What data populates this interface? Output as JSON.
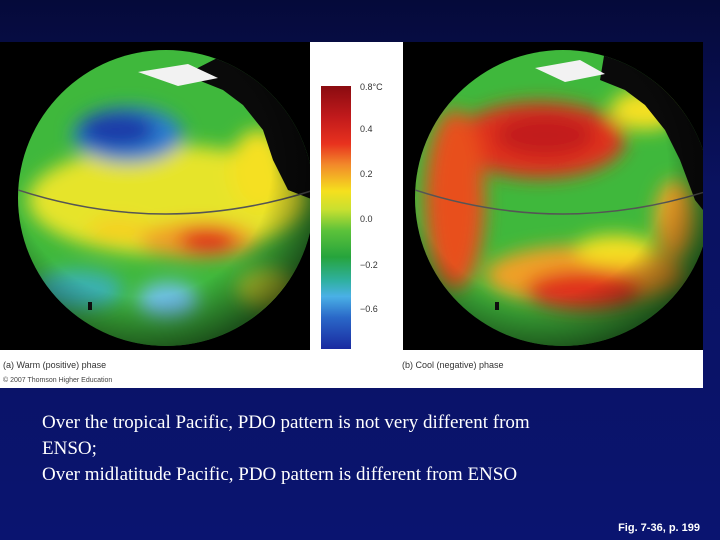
{
  "figure": {
    "colorbar": {
      "ticks": [
        "0.8°C",
        "0.4",
        "0.2",
        "0.0",
        "−0.2",
        "−0.6"
      ],
      "colors": [
        "#8a0b10",
        "#c21a1c",
        "#f5e01e",
        "#26a43c",
        "#4ab0e6",
        "#1a2aa0"
      ]
    },
    "caption_a": "(a) Warm (positive) phase",
    "caption_b": "(b) Cool (negative) phase",
    "copyright": "© 2007 Thomson Higher Education"
  },
  "body": {
    "line1": "Over the tropical Pacific, PDO pattern is not very different from",
    "line2": "ENSO;",
    "line3": "Over midlatitude Pacific, PDO pattern is different from ENSO"
  },
  "fig_ref": "Fig. 7-36, p. 199"
}
